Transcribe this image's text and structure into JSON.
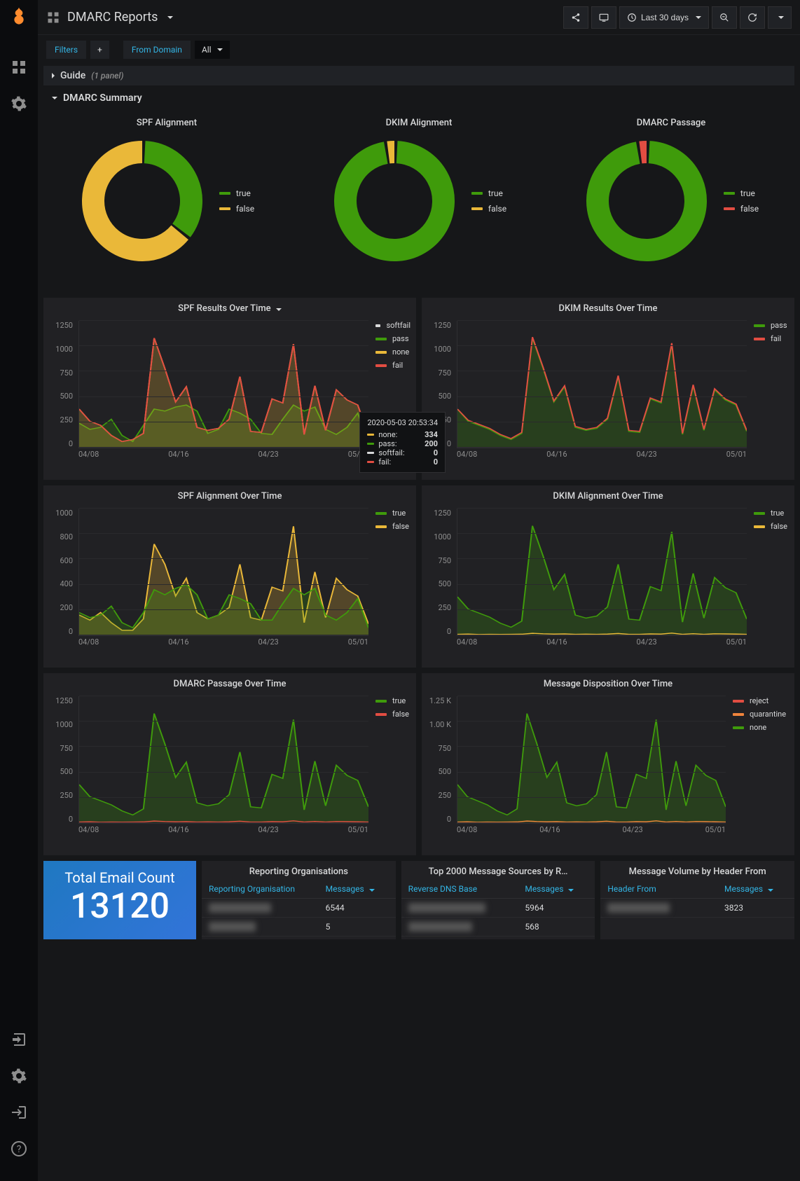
{
  "header": {
    "title": "DMARC Reports",
    "time_range": "Last 30 days"
  },
  "variables": {
    "filters_label": "Filters",
    "from_domain_label": "From Domain",
    "from_domain_value": "All"
  },
  "rows": {
    "guide": {
      "title": "Guide",
      "panel_count": "(1 panel)"
    },
    "summary": {
      "title": "DMARC Summary"
    }
  },
  "colors": {
    "green": "#3f9b0b",
    "yellow": "#eab839",
    "red": "#e24d42",
    "darkgreen": "#508642",
    "orange": "#ef843c",
    "pale": "#d8d9da"
  },
  "donuts": {
    "spf_alignment": {
      "title": "SPF Alignment",
      "true_pct": 35,
      "true_color": "#3f9b0b",
      "false_pct": 65,
      "false_color": "#eab839",
      "legend": [
        {
          "label": "true",
          "color": "#3f9b0b"
        },
        {
          "label": "false",
          "color": "#eab839"
        }
      ]
    },
    "dkim_alignment": {
      "title": "DKIM Alignment",
      "true_pct": 98,
      "true_color": "#3f9b0b",
      "false_pct": 2,
      "false_color": "#eab839",
      "legend": [
        {
          "label": "true",
          "color": "#3f9b0b"
        },
        {
          "label": "false",
          "color": "#eab839"
        }
      ]
    },
    "dmarc_passage": {
      "title": "DMARC Passage",
      "true_pct": 98,
      "true_color": "#3f9b0b",
      "false_pct": 2,
      "false_color": "#e24d42",
      "legend": [
        {
          "label": "true",
          "color": "#3f9b0b"
        },
        {
          "label": "false",
          "color": "#e24d42"
        }
      ]
    }
  },
  "charts": {
    "x_labels": [
      "04/08",
      "04/16",
      "04/23",
      "05/01"
    ],
    "spf_results": {
      "title": "SPF Results Over Time",
      "ymax": 1250,
      "ystep": 250,
      "legend": [
        {
          "label": "softfail",
          "color": "#d8d9da"
        },
        {
          "label": "pass",
          "color": "#3f9b0b"
        },
        {
          "label": "none",
          "color": "#eab839"
        },
        {
          "label": "fail",
          "color": "#e24d42"
        }
      ],
      "series": {
        "softfail": {
          "color": "#d8d9da",
          "data": [
            0,
            0,
            0,
            0,
            0,
            0,
            0,
            0,
            0,
            0,
            0,
            0,
            0,
            0,
            0,
            0,
            0,
            0,
            0,
            0,
            0,
            0,
            0,
            0,
            0,
            0,
            0,
            0
          ]
        },
        "pass": {
          "color": "#3f9b0b",
          "fill": true,
          "data": [
            240,
            180,
            200,
            280,
            120,
            60,
            220,
            380,
            360,
            400,
            420,
            360,
            140,
            180,
            380,
            340,
            280,
            140,
            130,
            280,
            420,
            360,
            400,
            180,
            130,
            200,
            340,
            60
          ]
        },
        "none": {
          "color": "#eab839",
          "fill": true,
          "data": [
            380,
            260,
            220,
            120,
            60,
            80,
            140,
            1080,
            780,
            450,
            600,
            200,
            170,
            190,
            280,
            700,
            160,
            150,
            480,
            440,
            1020,
            130,
            610,
            170,
            570,
            470,
            420,
            120
          ]
        },
        "fail": {
          "color": "#e24d42",
          "data": [
            380,
            260,
            220,
            120,
            60,
            80,
            140,
            1080,
            780,
            450,
            600,
            200,
            170,
            190,
            280,
            700,
            160,
            150,
            480,
            440,
            1020,
            130,
            610,
            170,
            570,
            470,
            420,
            120
          ]
        }
      },
      "tooltip": {
        "time": "2020-05-03 20:53:34",
        "vals": [
          {
            "label": "none:",
            "color": "#eab839",
            "v": "334"
          },
          {
            "label": "pass:",
            "color": "#3f9b0b",
            "v": "200"
          },
          {
            "label": "softfail:",
            "color": "#d8d9da",
            "v": "0"
          },
          {
            "label": "fail:",
            "color": "#e24d42",
            "v": "0"
          }
        ]
      }
    },
    "dkim_results": {
      "title": "DKIM Results Over Time",
      "ymax": 1250,
      "ystep": 250,
      "legend": [
        {
          "label": "pass",
          "color": "#3f9b0b"
        },
        {
          "label": "fail",
          "color": "#e24d42"
        }
      ],
      "series": {
        "pass": {
          "color": "#3f9b0b",
          "fill": true,
          "data": [
            380,
            260,
            220,
            180,
            120,
            80,
            140,
            1080,
            780,
            450,
            600,
            200,
            170,
            190,
            280,
            700,
            160,
            150,
            480,
            440,
            1020,
            130,
            610,
            170,
            570,
            470,
            420,
            160
          ]
        },
        "fail": {
          "color": "#e24d42",
          "data": [
            380,
            270,
            230,
            190,
            130,
            90,
            150,
            1090,
            790,
            460,
            610,
            210,
            180,
            200,
            290,
            710,
            170,
            160,
            490,
            450,
            1030,
            140,
            620,
            180,
            580,
            480,
            430,
            170
          ]
        }
      }
    },
    "spf_align": {
      "title": "SPF Alignment Over Time",
      "ymax": 1000,
      "ystep": 200,
      "legend": [
        {
          "label": "true",
          "color": "#3f9b0b"
        },
        {
          "label": "false",
          "color": "#eab839"
        }
      ],
      "series": {
        "false": {
          "color": "#eab839",
          "fill": true,
          "data": [
            160,
            120,
            180,
            100,
            40,
            40,
            130,
            720,
            560,
            310,
            450,
            180,
            130,
            160,
            220,
            560,
            140,
            120,
            380,
            350,
            860,
            100,
            500,
            140,
            450,
            360,
            310,
            90
          ]
        },
        "true": {
          "color": "#3f9b0b",
          "fill": true,
          "data": [
            180,
            140,
            160,
            230,
            100,
            60,
            180,
            360,
            320,
            370,
            400,
            320,
            130,
            160,
            320,
            290,
            250,
            120,
            120,
            250,
            370,
            320,
            370,
            160,
            120,
            180,
            290,
            60
          ]
        }
      }
    },
    "dkim_align": {
      "title": "DKIM Alignment Over Time",
      "ymax": 1250,
      "ystep": 250,
      "legend": [
        {
          "label": "true",
          "color": "#3f9b0b"
        },
        {
          "label": "false",
          "color": "#eab839"
        }
      ],
      "series": {
        "true": {
          "color": "#3f9b0b",
          "fill": true,
          "data": [
            380,
            260,
            220,
            180,
            120,
            80,
            140,
            1080,
            780,
            450,
            600,
            200,
            170,
            190,
            280,
            700,
            160,
            150,
            480,
            440,
            1020,
            130,
            610,
            170,
            570,
            470,
            420,
            160
          ]
        },
        "false": {
          "color": "#eab839",
          "data": [
            10,
            12,
            8,
            10,
            9,
            10,
            11,
            20,
            15,
            12,
            14,
            10,
            11,
            10,
            12,
            18,
            10,
            10,
            14,
            12,
            22,
            10,
            16,
            10,
            15,
            14,
            12,
            10
          ]
        }
      }
    },
    "dmarc_pass": {
      "title": "DMARC Passage Over Time",
      "ymax": 1250,
      "ystep": 250,
      "legend": [
        {
          "label": "true",
          "color": "#3f9b0b"
        },
        {
          "label": "false",
          "color": "#e24d42"
        }
      ],
      "series": {
        "true": {
          "color": "#3f9b0b",
          "fill": true,
          "data": [
            380,
            260,
            220,
            180,
            120,
            80,
            140,
            1080,
            780,
            450,
            600,
            200,
            170,
            190,
            280,
            700,
            160,
            150,
            480,
            440,
            1020,
            130,
            610,
            170,
            570,
            470,
            420,
            160
          ]
        },
        "false": {
          "color": "#e24d42",
          "data": [
            10,
            12,
            8,
            10,
            9,
            10,
            11,
            20,
            15,
            12,
            14,
            10,
            11,
            10,
            12,
            18,
            10,
            10,
            14,
            12,
            22,
            10,
            16,
            10,
            15,
            14,
            12,
            10
          ]
        }
      }
    },
    "msg_disp": {
      "title": "Message Disposition Over Time",
      "ymax": 1250,
      "ystep": 250,
      "ylabels": [
        "0",
        "250",
        "500",
        "750",
        "1.00 K",
        "1.25 K"
      ],
      "legend": [
        {
          "label": "reject",
          "color": "#e24d42"
        },
        {
          "label": "quarantine",
          "color": "#ef843c"
        },
        {
          "label": "none",
          "color": "#3f9b0b"
        }
      ],
      "series": {
        "none": {
          "color": "#3f9b0b",
          "fill": true,
          "data": [
            380,
            260,
            220,
            180,
            120,
            80,
            140,
            1080,
            780,
            450,
            600,
            200,
            170,
            190,
            280,
            700,
            160,
            150,
            480,
            440,
            1020,
            130,
            610,
            170,
            570,
            470,
            420,
            160
          ]
        },
        "quarantine": {
          "color": "#ef843c",
          "data": [
            10,
            12,
            8,
            10,
            9,
            10,
            11,
            20,
            15,
            12,
            14,
            10,
            11,
            10,
            12,
            18,
            10,
            10,
            14,
            12,
            22,
            10,
            16,
            10,
            15,
            14,
            12,
            10
          ]
        },
        "reject": {
          "color": "#e24d42",
          "data": [
            0,
            0,
            0,
            0,
            0,
            0,
            0,
            0,
            0,
            0,
            0,
            0,
            0,
            0,
            0,
            0,
            0,
            0,
            0,
            0,
            0,
            0,
            0,
            0,
            0,
            0,
            0,
            0
          ]
        }
      }
    }
  },
  "stat": {
    "label": "Total Email Count",
    "value": "13120"
  },
  "tables": {
    "reporting": {
      "title": "Reporting Organisations",
      "col1": "Reporting Organisation",
      "col2": "Messages",
      "rows": [
        {
          "v": "6544"
        },
        {
          "v": "5"
        }
      ]
    },
    "sources": {
      "title": "Top 2000 Message Sources by R…",
      "col1": "Reverse DNS Base",
      "col2": "Messages",
      "rows": [
        {
          "v": "5964"
        },
        {
          "v": "568"
        }
      ]
    },
    "header_from": {
      "title": "Message Volume by Header From",
      "col1": "Header From",
      "col2": "Messages",
      "rows": [
        {
          "v": "3823"
        }
      ]
    }
  }
}
